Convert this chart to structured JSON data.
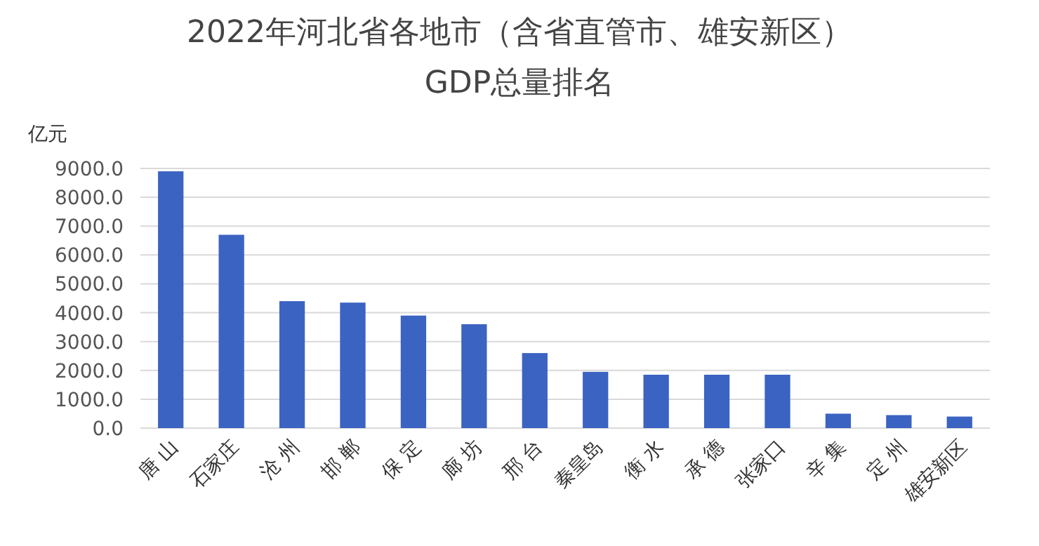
{
  "chart_data": {
    "type": "bar",
    "title": "2022年河北省各地市（含省直管市、雄安新区）",
    "subtitle": "GDP总量排名",
    "ylabel": "亿元",
    "categories": [
      "唐 山",
      "石家庄",
      "沧 州",
      "邯 郸",
      "保 定",
      "廊 坊",
      "邢 台",
      "秦皇岛",
      "衡 水",
      "承 德",
      "张家口",
      "辛 集",
      "定 州",
      "雄安新区"
    ],
    "values": [
      8900,
      6700,
      4400,
      4350,
      3900,
      3600,
      2600,
      1950,
      1850,
      1850,
      1850,
      500,
      450,
      400
    ],
    "color": "#3b63c2",
    "ylim": [
      0,
      9000
    ],
    "yticks": [
      {
        "value": 0,
        "label": "0.0"
      },
      {
        "value": 1000,
        "label": "1000.0"
      },
      {
        "value": 2000,
        "label": "2000.0"
      },
      {
        "value": 3000,
        "label": "3000.0"
      },
      {
        "value": 4000,
        "label": "4000.0"
      },
      {
        "value": 5000,
        "label": "5000.0"
      },
      {
        "value": 6000,
        "label": "6000.0"
      },
      {
        "value": 7000,
        "label": "7000.0"
      },
      {
        "value": 8000,
        "label": "8000.0"
      },
      {
        "value": 9000,
        "label": "9000.0"
      }
    ],
    "grid": "y"
  }
}
